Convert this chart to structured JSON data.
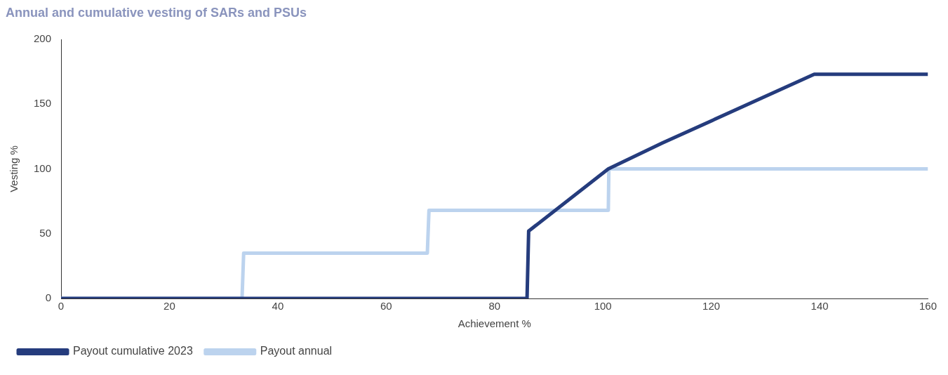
{
  "chart_data": {
    "type": "line",
    "title": "Annual and cumulative vesting of SARs and PSUs",
    "xlabel": "Achievement %",
    "ylabel": "Vesting %",
    "xlim": [
      0,
      160
    ],
    "xticks": [
      0,
      20,
      40,
      60,
      80,
      100,
      120,
      140,
      160
    ],
    "ylim": [
      0,
      200
    ],
    "yticks": [
      0,
      50,
      100,
      150,
      200
    ],
    "grid": false,
    "legend": "bottom",
    "marker": "none",
    "line_style": "solid",
    "series": [
      {
        "name": "Payout cumulative 2023",
        "color": "#253c7d",
        "x": [
          0,
          86,
          86.3,
          101,
          111,
          139,
          160
        ],
        "values": [
          0,
          0,
          52,
          100,
          120,
          173,
          173
        ]
      },
      {
        "name": "Payout annual",
        "color": "#bcd3ee",
        "x": [
          0,
          33.4,
          33.7,
          67.6,
          67.9,
          101,
          101.1,
          160
        ],
        "values": [
          0,
          0,
          35,
          35,
          68,
          68,
          100,
          100
        ]
      }
    ]
  }
}
